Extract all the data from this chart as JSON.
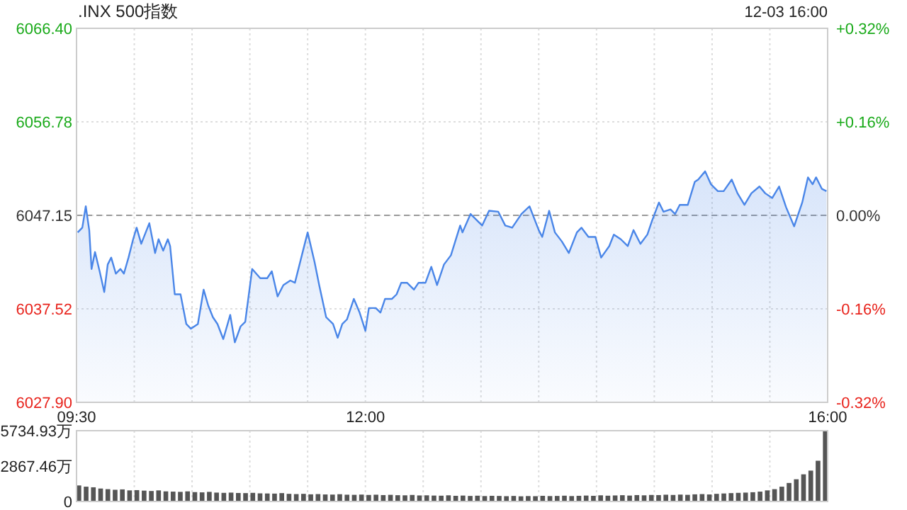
{
  "chart_data": [
    {
      "type": "area",
      "title": ".INX 500指数",
      "subtitle": "12-03 16:00",
      "x": [
        9.51,
        9.55,
        9.58,
        9.61,
        9.63,
        9.66,
        9.7,
        9.74,
        9.77,
        9.8,
        9.84,
        9.88,
        9.91,
        9.95,
        9.99,
        10.02,
        10.06,
        10.13,
        10.18,
        10.21,
        10.25,
        10.29,
        10.31,
        10.35,
        10.4,
        10.45,
        10.49,
        10.55,
        10.6,
        10.64,
        10.68,
        10.72,
        10.77,
        10.83,
        10.87,
        10.92,
        10.96,
        11.02,
        11.09,
        11.15,
        11.19,
        11.24,
        11.29,
        11.35,
        11.39,
        11.45,
        11.5,
        11.56,
        11.6,
        11.66,
        11.72,
        11.76,
        11.8,
        11.84,
        11.9,
        11.95,
        12.0,
        12.03,
        12.09,
        12.13,
        12.17,
        12.23,
        12.27,
        12.31,
        12.36,
        12.42,
        12.46,
        12.52,
        12.57,
        12.62,
        12.68,
        12.74,
        12.82,
        12.84,
        12.91,
        12.95,
        13.01,
        13.07,
        13.15,
        13.21,
        13.27,
        13.35,
        13.42,
        13.5,
        13.53,
        13.59,
        13.64,
        13.7,
        13.76,
        13.83,
        13.87,
        13.93,
        13.99,
        14.04,
        14.11,
        14.15,
        14.21,
        14.27,
        14.32,
        14.38,
        14.44,
        14.48,
        14.54,
        14.58,
        14.64,
        14.68,
        14.72,
        14.79,
        14.85,
        14.88,
        14.94,
        14.99,
        15.05,
        15.1,
        15.17,
        15.22,
        15.28,
        15.34,
        15.41,
        15.46,
        15.52,
        15.58,
        15.64,
        15.71,
        15.78,
        15.83,
        15.87,
        15.9,
        15.95,
        15.99
      ],
      "series": [
        {
          "color": "#4a86e8",
          "values": [
            6045.39,
            6045.88,
            6048.08,
            6045.63,
            6041.63,
            6043.37,
            6041.39,
            6039.26,
            6042.09,
            6042.8,
            6041.15,
            6041.63,
            6041.15,
            6042.8,
            6044.69,
            6045.88,
            6044.22,
            6046.34,
            6043.27,
            6044.69,
            6043.51,
            6044.69,
            6043.98,
            6039.02,
            6039.02,
            6035.96,
            6035.48,
            6035.96,
            6039.5,
            6037.85,
            6036.67,
            6035.96,
            6034.41,
            6036.9,
            6034.07,
            6035.72,
            6036.19,
            6041.63,
            6040.68,
            6040.68,
            6041.39,
            6038.8,
            6039.97,
            6040.44,
            6040.21,
            6043.04,
            6045.39,
            6042.34,
            6039.97,
            6036.67,
            6035.96,
            6034.55,
            6035.96,
            6036.43,
            6038.55,
            6037.14,
            6035.26,
            6037.61,
            6037.61,
            6037.14,
            6038.55,
            6038.55,
            6039.02,
            6040.21,
            6040.21,
            6039.5,
            6040.21,
            6040.21,
            6041.85,
            6039.97,
            6042.09,
            6043.04,
            6046.1,
            6045.39,
            6047.29,
            6046.81,
            6046.1,
            6047.62,
            6047.52,
            6046.1,
            6045.88,
            6047.29,
            6048.08,
            6045.63,
            6044.93,
            6047.62,
            6045.39,
            6044.46,
            6043.27,
            6045.39,
            6045.88,
            6044.93,
            6044.93,
            6042.8,
            6043.98,
            6045.17,
            6044.69,
            6043.98,
            6045.63,
            6044.22,
            6045.17,
            6046.58,
            6048.47,
            6047.52,
            6047.76,
            6047.29,
            6048.23,
            6048.23,
            6050.59,
            6050.83,
            6051.68,
            6050.35,
            6049.64,
            6049.64,
            6050.83,
            6049.42,
            6048.23,
            6049.42,
            6050.12,
            6049.42,
            6048.93,
            6050.12,
            6048.0,
            6046.02,
            6048.47,
            6051.06,
            6050.35,
            6051.06,
            6049.88,
            6049.64
          ]
        }
      ],
      "xlim": [
        9.5,
        16
      ],
      "xticks": [
        {
          "value": 9.5,
          "label": "09:30"
        },
        {
          "value": 10,
          "label": null
        },
        {
          "value": 10.5,
          "label": null
        },
        {
          "value": 11,
          "label": null
        },
        {
          "value": 11.5,
          "label": null
        },
        {
          "value": 12,
          "label": "12:00"
        },
        {
          "value": 12.5,
          "label": null
        },
        {
          "value": 13,
          "label": null
        },
        {
          "value": 13.5,
          "label": null
        },
        {
          "value": 14,
          "label": null
        },
        {
          "value": 14.5,
          "label": null
        },
        {
          "value": 15,
          "label": null
        },
        {
          "value": 15.5,
          "label": null
        },
        {
          "value": 16,
          "label": "16:00"
        }
      ],
      "ylim": [
        6027.9,
        6066.4
      ],
      "yticks": [
        {
          "value": 6027.9,
          "label": "6027.90"
        },
        6037.52,
        6047.15,
        6056.78,
        {
          "value": 6066.4,
          "label": "6066.40"
        }
      ],
      "y2lim": [
        -0.32,
        0.32
      ],
      "y2ticks": [
        {
          "value": -0.32,
          "label": "-0.32%"
        },
        {
          "value": -0.16,
          "label": "-0.16%"
        },
        {
          "value": 0,
          "label": "0.00%"
        },
        {
          "value": 0.16,
          "label": "+0.16%"
        },
        {
          "value": 0.32,
          "label": "+0.32%"
        }
      ],
      "ref_lines": [
        {
          "axis": "y",
          "value": 6047.15,
          "line_style": "dashed",
          "color": "#999999"
        }
      ],
      "grid": true
    },
    {
      "type": "bar",
      "categories": [
        null,
        null,
        null,
        null,
        null,
        null,
        null,
        null,
        null,
        null,
        null,
        null,
        null,
        null,
        null,
        null,
        null,
        null,
        null,
        null,
        null,
        null,
        null,
        null,
        null,
        null,
        null,
        null,
        null,
        null,
        null,
        null,
        null,
        null,
        null,
        null,
        null,
        null,
        null,
        null,
        null,
        null,
        null,
        null,
        null,
        null,
        null,
        null,
        null,
        null,
        null,
        null,
        null,
        null,
        null,
        null,
        null,
        null,
        null,
        null,
        null,
        null,
        null,
        null,
        null,
        null,
        null,
        null,
        null,
        null,
        null,
        null,
        null,
        null,
        null,
        null,
        null,
        null,
        null,
        null,
        null,
        null,
        null,
        null,
        null,
        null,
        null,
        null,
        null,
        null,
        null,
        null,
        null,
        null,
        null,
        null,
        null,
        null,
        null,
        null,
        null,
        null,
        null,
        null
      ],
      "values": [
        1300,
        1200,
        1150,
        1050,
        1000,
        950,
        980,
        900,
        920,
        880,
        850,
        900,
        820,
        800,
        780,
        820,
        760,
        740,
        780,
        720,
        700,
        720,
        690,
        680,
        700,
        660,
        650,
        640,
        680,
        620,
        600,
        620,
        580,
        600,
        570,
        560,
        590,
        550,
        540,
        560,
        530,
        550,
        520,
        540,
        510,
        500,
        530,
        490,
        500,
        480,
        470,
        500,
        460,
        480,
        450,
        470,
        440,
        460,
        450,
        430,
        450,
        420,
        440,
        430,
        460,
        440,
        450,
        470,
        440,
        460,
        480,
        460,
        500,
        470,
        490,
        510,
        480,
        520,
        500,
        530,
        520,
        550,
        530,
        560,
        540,
        580,
        600,
        570,
        620,
        650,
        680,
        700,
        720,
        750,
        800,
        900,
        1000,
        1200,
        1500,
        1800,
        2200,
        2500,
        3300,
        5700
      ],
      "color": "#555555",
      "ylim": [
        0,
        5734.93
      ],
      "yticks": [
        0,
        {
          "value": 2867.46,
          "label": "2867.46万"
        },
        {
          "value": 5734.93,
          "label": "5734.93万"
        }
      ],
      "grid": "x"
    }
  ]
}
